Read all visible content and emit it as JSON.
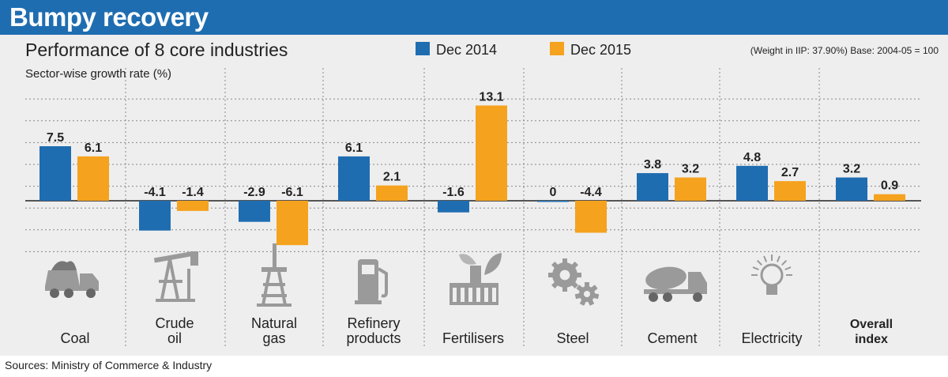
{
  "header": {
    "title": "Bumpy recovery"
  },
  "chart_data": {
    "type": "bar",
    "title": "Performance of 8 core industries",
    "subtitle": "Sector-wise growth rate (%)",
    "note": "(Weight in IIP: 37.90%) Base: 2004-05 = 100",
    "categories": [
      "Coal",
      "Crude oil",
      "Natural gas",
      "Refinery products",
      "Fertilisers",
      "Steel",
      "Cement",
      "Electricity",
      "Overall index"
    ],
    "category_lines": [
      [
        "Coal"
      ],
      [
        "Crude",
        "oil"
      ],
      [
        "Natural",
        "gas"
      ],
      [
        "Refinery",
        "products"
      ],
      [
        "Fertilisers"
      ],
      [
        "Steel"
      ],
      [
        "Cement"
      ],
      [
        "Electricity"
      ],
      [
        "Overall",
        "index"
      ]
    ],
    "category_icons": [
      "truck-icon",
      "oil-pump-icon",
      "gas-rig-icon",
      "fuel-pump-icon",
      "plant-factory-icon",
      "gears-icon",
      "cement-mixer-icon",
      "light-bulb-icon",
      ""
    ],
    "series": [
      {
        "name": "Dec 2014",
        "color": "#1f6db1",
        "values": [
          7.5,
          -4.1,
          -2.9,
          6.1,
          -1.6,
          0,
          3.8,
          4.8,
          3.2
        ],
        "labels": [
          "7.5",
          "-4.1",
          "-2.9",
          "6.1",
          "-1.6",
          "0",
          "3.8",
          "4.8",
          "3.2"
        ]
      },
      {
        "name": "Dec 2015",
        "color": "#f5a21e",
        "values": [
          6.1,
          -1.4,
          -6.1,
          2.1,
          13.1,
          -4.4,
          3.2,
          2.7,
          0.9
        ],
        "labels": [
          "6.1",
          "-1.4",
          "-6.1",
          "2.1",
          "13.1",
          "-4.4",
          "3.2",
          "2.7",
          "0.9"
        ]
      }
    ],
    "ylim": [
      -6.1,
      14.0
    ],
    "grid": true,
    "legend": "top"
  },
  "footer": {
    "source": "Sources: Ministry of Commerce & Industry"
  }
}
